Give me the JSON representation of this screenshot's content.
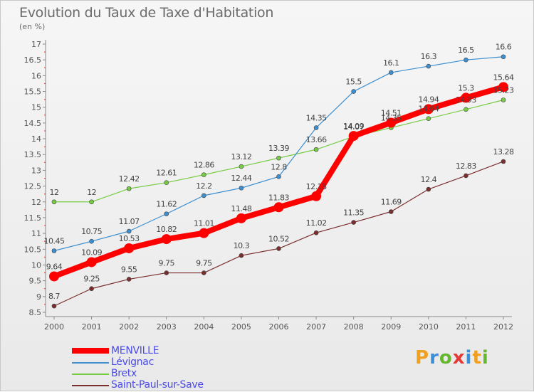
{
  "header": {
    "title": "Evolution du Taux de Taxe d'Habitation",
    "subtitle": "(en %)"
  },
  "logo": {
    "text": "Proxiti",
    "letters": [
      {
        "ch": "P",
        "color": "#f0a020"
      },
      {
        "ch": "r",
        "color": "#3b8fd9"
      },
      {
        "ch": "o",
        "color": "#66b72f"
      },
      {
        "ch": "x",
        "color": "#e53935"
      },
      {
        "ch": "i",
        "color": "#3b8fd9"
      },
      {
        "ch": "t",
        "color": "#f0a020"
      },
      {
        "ch": "i",
        "color": "#66b72f"
      }
    ]
  },
  "chart_data": {
    "type": "line",
    "title": "Evolution du Taux de Taxe d'Habitation",
    "subtitle": "(en %)",
    "x": [
      2000,
      2001,
      2002,
      2003,
      2004,
      2005,
      2006,
      2007,
      2008,
      2009,
      2010,
      2011,
      2012
    ],
    "ylim": [
      8.5,
      17
    ],
    "yticks": [
      8.5,
      9,
      9.5,
      10,
      10.5,
      11,
      11.5,
      12,
      12.5,
      13,
      13.5,
      14,
      14.5,
      15,
      15.5,
      16,
      16.5,
      17
    ],
    "grid": false,
    "legend_position": "bottom-left",
    "series": [
      {
        "name": "MENVILLE",
        "color": "#ff0000",
        "emphasis": true,
        "values": [
          9.64,
          10.09,
          10.53,
          10.82,
          11.01,
          11.48,
          11.83,
          12.18,
          14.09,
          14.51,
          14.94,
          15.3,
          15.64
        ],
        "labels": [
          "9.64",
          "10.09",
          "10.53",
          "10.82",
          "11.01",
          "11.48",
          "11.83",
          "12.18",
          "14.09",
          "14.51",
          "14.94",
          "15.3",
          "15.64"
        ]
      },
      {
        "name": "Lévignac",
        "color": "#3d8fd0",
        "values": [
          10.45,
          10.75,
          11.07,
          11.62,
          12.2,
          12.44,
          12.8,
          14.35,
          15.5,
          16.1,
          16.3,
          16.5,
          16.6
        ],
        "labels": [
          "10.45",
          "10.75",
          "11.07",
          "11.62",
          "12.2",
          "12.44",
          "12.8",
          "14.35",
          "15.5",
          "16.1",
          "16.3",
          "16.5",
          "16.6"
        ]
      },
      {
        "name": "Bretx",
        "color": "#77cc44",
        "values": [
          12,
          12,
          12.42,
          12.61,
          12.86,
          13.12,
          13.39,
          13.66,
          14.07,
          14.35,
          14.64,
          14.93,
          15.23
        ],
        "labels": [
          "12",
          "12",
          "12.42",
          "12.61",
          "12.86",
          "13.12",
          "13.39",
          "13.66",
          "14.07",
          "14.35",
          "14.64",
          "14.93",
          "15.23"
        ]
      },
      {
        "name": "Saint-Paul-sur-Save",
        "color": "#7a2e2e",
        "values": [
          8.7,
          9.25,
          9.55,
          9.75,
          9.75,
          10.3,
          10.52,
          11.02,
          11.35,
          11.69,
          12.4,
          12.83,
          13.28
        ],
        "labels": [
          "8.7",
          "9.25",
          "9.55",
          "9.75",
          "9.75",
          "10.3",
          "10.52",
          "11.02",
          "11.35",
          "11.69",
          "12.4",
          "12.83",
          "13.28"
        ]
      }
    ]
  },
  "legend": [
    {
      "label": "MENVILLE",
      "color": "#ff0000",
      "thick": true
    },
    {
      "label": "Lévignac",
      "color": "#3d8fd0",
      "thick": false
    },
    {
      "label": "Bretx",
      "color": "#77cc44",
      "thick": false
    },
    {
      "label": "Saint-Paul-sur-Save",
      "color": "#7a2e2e",
      "thick": false
    }
  ]
}
